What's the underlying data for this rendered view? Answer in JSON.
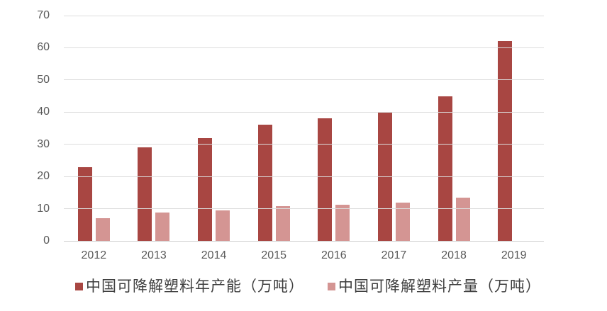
{
  "chart_data": {
    "type": "bar",
    "title": "",
    "xlabel": "",
    "ylabel": "",
    "categories": [
      "2012",
      "2013",
      "2014",
      "2015",
      "2016",
      "2017",
      "2018",
      "2019"
    ],
    "series": [
      {
        "name": "中国可降解塑料年产能（万吨）",
        "color": "#A84642",
        "values": [
          23,
          29,
          32,
          36,
          38,
          40,
          45,
          62
        ]
      },
      {
        "name": "中国可降解塑料产量（万吨）",
        "color": "#D49593",
        "values": [
          7,
          8.7,
          9.5,
          10.7,
          11.3,
          12,
          13.5,
          null
        ]
      }
    ],
    "ylim": [
      0,
      70
    ],
    "yticks": [
      0,
      10,
      20,
      30,
      40,
      50,
      60,
      70
    ],
    "grid": true,
    "legend_position": "bottom"
  },
  "style": {
    "background_color": "#FFFFFF",
    "gridline_color": "#DCDCDC",
    "axis_line_color": "#CFCFCF",
    "axis_text_color": "#595959",
    "legend_text_color": "#3F3F3F"
  }
}
